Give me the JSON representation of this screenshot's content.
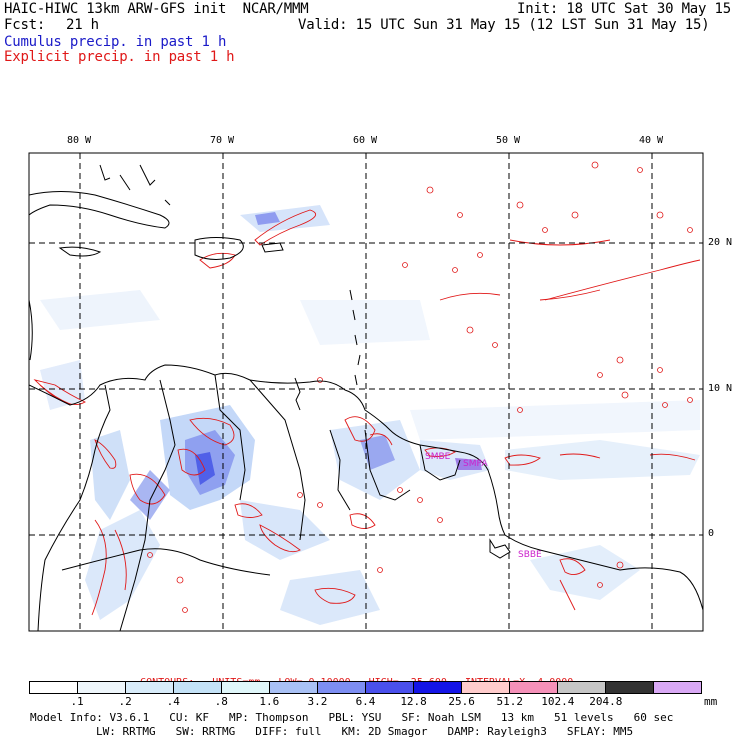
{
  "header": {
    "model_title": "HAIC-HIWC 13km ARW-GFS init  NCAR/MMM",
    "fcst_label": "Fcst:",
    "fcst_value": "21 h",
    "init": "Init: 18 UTC Sat 30 May 15",
    "valid": "Valid: 15 UTC Sun 31 May 15 (12 LST Sun 31 May 15)",
    "cumulus_label": "Cumulus precip. in past 1 h",
    "explicit_label": "Explicit precip. in past 1 h"
  },
  "map": {
    "lon_labels": [
      "80 W",
      "70 W",
      "60 W",
      "50 W",
      "40 W"
    ],
    "lat_labels": [
      "20 N",
      "10 N",
      "0"
    ],
    "place_labels": [
      "SMBE",
      "SMPA",
      "SBBE"
    ]
  },
  "contours": {
    "title": "CONTOURS:",
    "units": "UNITS=mm",
    "low": "LOW= 0.10000",
    "high": "HIGH=  25.600",
    "interval": "INTERVAL=X  4.0000"
  },
  "colorbar": {
    "labels": [
      ".1",
      ".2",
      ".4",
      ".8",
      "1.6",
      "3.2",
      "6.4",
      "12.8",
      "25.6",
      "51.2",
      "102.4",
      "204.8"
    ],
    "colors": [
      "#ffffff",
      "#eef6fb",
      "#d8ecfa",
      "#c4e2f7",
      "#e0f7fa",
      "#a9c1f5",
      "#7d8ef2",
      "#4a50ec",
      "#1414e6",
      "#ffcccc",
      "#f591b9",
      "#c6c6c6",
      "#333333",
      "#d9a9f5"
    ],
    "units": "mm"
  },
  "model_info": {
    "line1": [
      "Model Info: V3.6.1",
      "CU: KF",
      "MP: Thompson",
      "PBL: YSU",
      "SF: Noah LSM",
      "13 km",
      "51 levels",
      "60 sec"
    ],
    "line2": [
      "LW: RRTMG",
      "SW: RRTMG",
      "DIFF: full",
      "KM: 2D Smagor",
      "DAMP: Rayleigh3",
      "SFLAY: MM5"
    ]
  }
}
